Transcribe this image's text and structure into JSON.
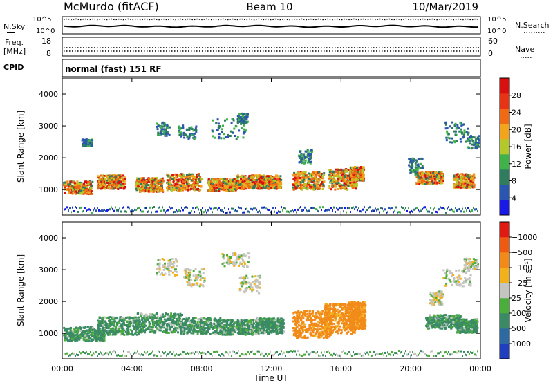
{
  "header": {
    "station": "McMurdo (fitACF)",
    "beam": "Beam 10",
    "date": "10/Mar/2019"
  },
  "noise_panel": {
    "left_label": "N.Sky",
    "right_label": "N.Search",
    "tick_top": "10^5",
    "tick_bottom": "10^0"
  },
  "freq_panel": {
    "left_label_1": "Freq.",
    "left_label_2": "[MHz]",
    "right_label": "Nave",
    "left_ticks": [
      "18",
      "8"
    ],
    "right_ticks": [
      "60",
      "0"
    ]
  },
  "cpid_panel": {
    "label": "CPID",
    "text": "normal (fast) 151 RF"
  },
  "chart_data": [
    {
      "type": "heatmap",
      "name": "power",
      "ylabel": "Slant Range [km]",
      "ylim": [
        200,
        4500
      ],
      "yticks": [
        1000,
        2000,
        3000,
        4000
      ],
      "xlim": [
        0,
        24
      ],
      "xticks": [
        "00:00",
        "04:00",
        "08:00",
        "12:00",
        "16:00",
        "20:00",
        "00:00"
      ],
      "colorbar": {
        "label": "Power [dB]",
        "ticks": [
          "4",
          "8",
          "12",
          "16",
          "20",
          "24",
          "28"
        ],
        "colors": [
          "#1a1ae6",
          "#2a55b0",
          "#2f7d5e",
          "#3fb34a",
          "#b5c829",
          "#f2a51c",
          "#ef6a12",
          "#e63414",
          "#d8100f"
        ]
      }
    },
    {
      "type": "heatmap",
      "name": "velocity",
      "ylabel": "Slant Range [km]",
      "ylim": [
        200,
        4500
      ],
      "yticks": [
        1000,
        2000,
        3000,
        4000
      ],
      "xlim": [
        0,
        24
      ],
      "xticks": [
        "00:00",
        "04:00",
        "08:00",
        "12:00",
        "16:00",
        "20:00",
        "00:00"
      ],
      "xlabel": "Time UT",
      "colorbar": {
        "label": "Velocity [m s⁻¹]",
        "ticks": [
          "1000",
          "500",
          "100",
          "25",
          "−25",
          "−100",
          "−500",
          "−1000"
        ],
        "colors": [
          "#1f3fbf",
          "#2d6aa3",
          "#3a8a66",
          "#4cae3a",
          "#c4c4c0",
          "#f2b11a",
          "#f28a1a",
          "#ef5a12",
          "#e01a10"
        ]
      }
    }
  ]
}
